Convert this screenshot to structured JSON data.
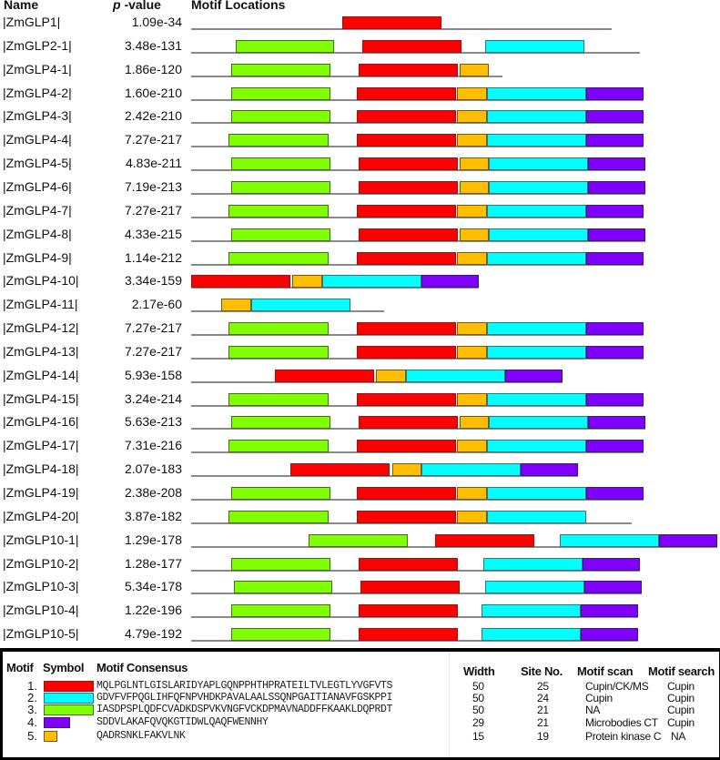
{
  "headers": {
    "name": "Name",
    "p_italic": "p",
    "p_rest": " -value",
    "locations": "Motif Locations"
  },
  "motif_colors": {
    "1": "#ff0000",
    "2": "#00ffff",
    "3": "#80ff00",
    "4": "#8000ff",
    "5": "#ffbf00"
  },
  "sequences": [
    {
      "name": "|ZmGLP1|",
      "pvalue": "1.09e-34",
      "line_end": 672,
      "segments": [
        {
          "motif": 1,
          "start": 376,
          "end": 485
        }
      ]
    },
    {
      "name": "|ZmGLP2-1|",
      "pvalue": "3.48e-131",
      "line_end": 703,
      "segments": [
        {
          "motif": 3,
          "start": 259,
          "end": 367
        },
        {
          "motif": 1,
          "start": 398,
          "end": 507
        },
        {
          "motif": 2,
          "start": 533,
          "end": 642
        }
      ]
    },
    {
      "name": "|ZmGLP4-1|",
      "pvalue": "1.86e-120",
      "line_end": 552,
      "segments": [
        {
          "motif": 3,
          "start": 254,
          "end": 363
        },
        {
          "motif": 1,
          "start": 394,
          "end": 503
        },
        {
          "motif": 5,
          "start": 505,
          "end": 537
        }
      ]
    },
    {
      "name": "|ZmGLP4-2|",
      "pvalue": "1.60e-210",
      "line_end": 707,
      "segments": [
        {
          "motif": 3,
          "start": 254,
          "end": 363
        },
        {
          "motif": 1,
          "start": 392,
          "end": 501
        },
        {
          "motif": 5,
          "start": 502,
          "end": 535
        },
        {
          "motif": 2,
          "start": 535,
          "end": 644
        },
        {
          "motif": 4,
          "start": 644,
          "end": 707
        }
      ]
    },
    {
      "name": "|ZmGLP4-3|",
      "pvalue": "2.42e-210",
      "line_end": 707,
      "segments": [
        {
          "motif": 3,
          "start": 254,
          "end": 363
        },
        {
          "motif": 1,
          "start": 392,
          "end": 501
        },
        {
          "motif": 5,
          "start": 502,
          "end": 535
        },
        {
          "motif": 2,
          "start": 535,
          "end": 644
        },
        {
          "motif": 4,
          "start": 644,
          "end": 707
        }
      ]
    },
    {
      "name": "|ZmGLP4-4|",
      "pvalue": "7.27e-217",
      "line_end": 707,
      "segments": [
        {
          "motif": 3,
          "start": 251,
          "end": 361
        },
        {
          "motif": 1,
          "start": 392,
          "end": 501
        },
        {
          "motif": 5,
          "start": 502,
          "end": 535
        },
        {
          "motif": 2,
          "start": 535,
          "end": 644
        },
        {
          "motif": 4,
          "start": 644,
          "end": 707
        }
      ]
    },
    {
      "name": "|ZmGLP4-5|",
      "pvalue": "4.83e-211",
      "line_end": 709,
      "segments": [
        {
          "motif": 3,
          "start": 254,
          "end": 363
        },
        {
          "motif": 1,
          "start": 394,
          "end": 503
        },
        {
          "motif": 5,
          "start": 505,
          "end": 537
        },
        {
          "motif": 2,
          "start": 537,
          "end": 646
        },
        {
          "motif": 4,
          "start": 646,
          "end": 709
        }
      ]
    },
    {
      "name": "|ZmGLP4-6|",
      "pvalue": "7.19e-213",
      "line_end": 709,
      "segments": [
        {
          "motif": 3,
          "start": 254,
          "end": 363
        },
        {
          "motif": 1,
          "start": 394,
          "end": 503
        },
        {
          "motif": 5,
          "start": 505,
          "end": 537
        },
        {
          "motif": 2,
          "start": 537,
          "end": 646
        },
        {
          "motif": 4,
          "start": 646,
          "end": 709
        }
      ]
    },
    {
      "name": "|ZmGLP4-7|",
      "pvalue": "7.27e-217",
      "line_end": 707,
      "segments": [
        {
          "motif": 3,
          "start": 251,
          "end": 361
        },
        {
          "motif": 1,
          "start": 392,
          "end": 501
        },
        {
          "motif": 5,
          "start": 502,
          "end": 535
        },
        {
          "motif": 2,
          "start": 535,
          "end": 644
        },
        {
          "motif": 4,
          "start": 644,
          "end": 707
        }
      ]
    },
    {
      "name": "|ZmGLP4-8|",
      "pvalue": "4.33e-215",
      "line_end": 709,
      "segments": [
        {
          "motif": 3,
          "start": 254,
          "end": 363
        },
        {
          "motif": 1,
          "start": 394,
          "end": 503
        },
        {
          "motif": 5,
          "start": 505,
          "end": 537
        },
        {
          "motif": 2,
          "start": 537,
          "end": 646
        },
        {
          "motif": 4,
          "start": 646,
          "end": 709
        }
      ]
    },
    {
      "name": "|ZmGLP4-9|",
      "pvalue": "1.14e-212",
      "line_end": 707,
      "segments": [
        {
          "motif": 3,
          "start": 251,
          "end": 361
        },
        {
          "motif": 1,
          "start": 392,
          "end": 501
        },
        {
          "motif": 5,
          "start": 502,
          "end": 535
        },
        {
          "motif": 2,
          "start": 535,
          "end": 644
        },
        {
          "motif": 4,
          "start": 644,
          "end": 707
        }
      ]
    },
    {
      "name": "|ZmGLP4-10|",
      "pvalue": "3.34e-159",
      "line_end": 526,
      "segments": [
        {
          "motif": 1,
          "start": 210,
          "end": 319
        },
        {
          "motif": 5,
          "start": 321,
          "end": 354
        },
        {
          "motif": 2,
          "start": 354,
          "end": 463
        },
        {
          "motif": 4,
          "start": 463,
          "end": 526
        }
      ]
    },
    {
      "name": "|ZmGLP4-11|",
      "pvalue": "2.17e-60",
      "line_end": 422,
      "segments": [
        {
          "motif": 5,
          "start": 243,
          "end": 276
        },
        {
          "motif": 2,
          "start": 276,
          "end": 385
        }
      ]
    },
    {
      "name": "|ZmGLP4-12|",
      "pvalue": "7.27e-217",
      "line_end": 707,
      "segments": [
        {
          "motif": 3,
          "start": 251,
          "end": 361
        },
        {
          "motif": 1,
          "start": 392,
          "end": 501
        },
        {
          "motif": 5,
          "start": 502,
          "end": 535
        },
        {
          "motif": 2,
          "start": 535,
          "end": 644
        },
        {
          "motif": 4,
          "start": 644,
          "end": 707
        }
      ]
    },
    {
      "name": "|ZmGLP4-13|",
      "pvalue": "7.27e-217",
      "line_end": 707,
      "segments": [
        {
          "motif": 3,
          "start": 251,
          "end": 361
        },
        {
          "motif": 1,
          "start": 392,
          "end": 501
        },
        {
          "motif": 5,
          "start": 502,
          "end": 535
        },
        {
          "motif": 2,
          "start": 535,
          "end": 644
        },
        {
          "motif": 4,
          "start": 644,
          "end": 707
        }
      ]
    },
    {
      "name": "|ZmGLP4-14|",
      "pvalue": "5.93e-158",
      "line_end": 618,
      "segments": [
        {
          "motif": 1,
          "start": 302,
          "end": 411
        },
        {
          "motif": 5,
          "start": 413,
          "end": 446
        },
        {
          "motif": 2,
          "start": 446,
          "end": 555
        },
        {
          "motif": 4,
          "start": 555,
          "end": 618
        }
      ]
    },
    {
      "name": "|ZmGLP4-15|",
      "pvalue": "3.24e-214",
      "line_end": 707,
      "segments": [
        {
          "motif": 3,
          "start": 251,
          "end": 361
        },
        {
          "motif": 1,
          "start": 392,
          "end": 501
        },
        {
          "motif": 5,
          "start": 502,
          "end": 535
        },
        {
          "motif": 2,
          "start": 535,
          "end": 644
        },
        {
          "motif": 4,
          "start": 644,
          "end": 707
        }
      ]
    },
    {
      "name": "|ZmGLP4-16|",
      "pvalue": "5.63e-213",
      "line_end": 709,
      "segments": [
        {
          "motif": 3,
          "start": 254,
          "end": 363
        },
        {
          "motif": 1,
          "start": 394,
          "end": 503
        },
        {
          "motif": 5,
          "start": 505,
          "end": 537
        },
        {
          "motif": 2,
          "start": 537,
          "end": 646
        },
        {
          "motif": 4,
          "start": 646,
          "end": 709
        }
      ]
    },
    {
      "name": "|ZmGLP4-17|",
      "pvalue": "7.31e-216",
      "line_end": 707,
      "segments": [
        {
          "motif": 3,
          "start": 251,
          "end": 361
        },
        {
          "motif": 1,
          "start": 392,
          "end": 501
        },
        {
          "motif": 5,
          "start": 502,
          "end": 535
        },
        {
          "motif": 2,
          "start": 535,
          "end": 644
        },
        {
          "motif": 4,
          "start": 644,
          "end": 707
        }
      ]
    },
    {
      "name": "|ZmGLP4-18|",
      "pvalue": "2.07e-183",
      "line_end": 635,
      "segments": [
        {
          "motif": 1,
          "start": 319,
          "end": 428
        },
        {
          "motif": 5,
          "start": 431,
          "end": 463
        },
        {
          "motif": 2,
          "start": 463,
          "end": 572
        },
        {
          "motif": 4,
          "start": 572,
          "end": 635
        }
      ]
    },
    {
      "name": "|ZmGLP4-19|",
      "pvalue": "2.38e-208",
      "line_end": 707,
      "segments": [
        {
          "motif": 3,
          "start": 254,
          "end": 363
        },
        {
          "motif": 1,
          "start": 392,
          "end": 501
        },
        {
          "motif": 5,
          "start": 502,
          "end": 535
        },
        {
          "motif": 2,
          "start": 535,
          "end": 644
        },
        {
          "motif": 4,
          "start": 644,
          "end": 707
        }
      ]
    },
    {
      "name": "|ZmGLP4-20|",
      "pvalue": "3.87e-182",
      "line_end": 694,
      "segments": [
        {
          "motif": 3,
          "start": 251,
          "end": 361
        },
        {
          "motif": 1,
          "start": 392,
          "end": 501
        },
        {
          "motif": 5,
          "start": 502,
          "end": 535
        },
        {
          "motif": 2,
          "start": 535,
          "end": 644
        }
      ]
    },
    {
      "name": "|ZmGLP10-1|",
      "pvalue": "1.29e-178",
      "line_end": 788,
      "segments": [
        {
          "motif": 3,
          "start": 339,
          "end": 448
        },
        {
          "motif": 1,
          "start": 478,
          "end": 587
        },
        {
          "motif": 2,
          "start": 615,
          "end": 724
        },
        {
          "motif": 4,
          "start": 724,
          "end": 788
        }
      ]
    },
    {
      "name": "|ZmGLP10-2|",
      "pvalue": "1.28e-177",
      "line_end": 703,
      "segments": [
        {
          "motif": 3,
          "start": 254,
          "end": 363
        },
        {
          "motif": 1,
          "start": 394,
          "end": 503
        },
        {
          "motif": 2,
          "start": 531,
          "end": 640
        },
        {
          "motif": 4,
          "start": 640,
          "end": 703
        }
      ]
    },
    {
      "name": "|ZmGLP10-3|",
      "pvalue": "5.34e-178",
      "line_end": 705,
      "segments": [
        {
          "motif": 3,
          "start": 257,
          "end": 365
        },
        {
          "motif": 1,
          "start": 396,
          "end": 505
        },
        {
          "motif": 2,
          "start": 533,
          "end": 642
        },
        {
          "motif": 4,
          "start": 642,
          "end": 705
        }
      ]
    },
    {
      "name": "|ZmGLP10-4|",
      "pvalue": "1.22e-196",
      "line_end": 701,
      "segments": [
        {
          "motif": 3,
          "start": 254,
          "end": 363
        },
        {
          "motif": 1,
          "start": 394,
          "end": 503
        },
        {
          "motif": 2,
          "start": 529,
          "end": 638
        },
        {
          "motif": 4,
          "start": 638,
          "end": 701
        }
      ]
    },
    {
      "name": "|ZmGLP10-5|",
      "pvalue": "4.79e-192",
      "line_end": 701,
      "segments": [
        {
          "motif": 3,
          "start": 254,
          "end": 363
        },
        {
          "motif": 1,
          "start": 394,
          "end": 503
        },
        {
          "motif": 2,
          "start": 529,
          "end": 638
        },
        {
          "motif": 4,
          "start": 638,
          "end": 701
        }
      ]
    }
  ],
  "legend": {
    "headers": {
      "motif": "Motif",
      "symbol": "Symbol",
      "consensus": "Motif Consensus",
      "width": "Width",
      "site_no": "Site No.",
      "motif_scan": "Motif scan",
      "motif_search": "Motif search"
    },
    "rows": [
      {
        "num": "1.",
        "motif": 1,
        "symbol_width": 55,
        "consensus": "MQLPGLNTLGISLARIDYAPLGQNPPHTHPRATEILTVLEGTLYVGFVTS",
        "width": "50",
        "site_no": "25",
        "motif_scan": "Cupin/CK/MS",
        "motif_search": "Cupin"
      },
      {
        "num": "2.",
        "motif": 2,
        "symbol_width": 55,
        "consensus": "GDVFVFPQGLIHFQFNPVHDKPAVALAALSSQNPGAITIANAVFGSKPPI",
        "width": "50",
        "site_no": "24",
        "motif_scan": "Cupin",
        "motif_search": "Cupin"
      },
      {
        "num": "3.",
        "motif": 3,
        "symbol_width": 55,
        "consensus": "IASDPSPLQDFCVADKDSPVKVNGFVCKDPMAVNADDFFKAAKLDQPRDT",
        "width": "50",
        "site_no": "21",
        "motif_scan": "NA",
        "motif_search": "Cupin"
      },
      {
        "num": "4.",
        "motif": 4,
        "symbol_width": 29,
        "consensus": "SDDVLAKAFQVQKGTIDWLQAQFWENNHY",
        "width": "29",
        "site_no": "21",
        "motif_scan": "Microbodies  CT",
        "motif_search": "Cupin"
      },
      {
        "num": "5.",
        "motif": 5,
        "symbol_width": 15,
        "consensus": "QADRSNKLFAKVLNK",
        "width": "15",
        "site_no": "19",
        "motif_scan": "Protein kinase C",
        "motif_search": "NA"
      }
    ]
  }
}
